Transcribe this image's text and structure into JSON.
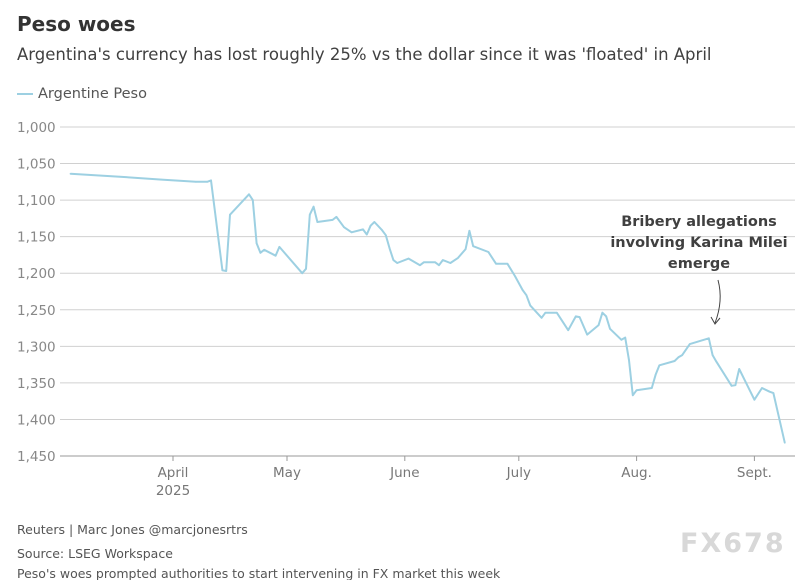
{
  "chart_data": {
    "type": "line",
    "title": "Peso woes",
    "subtitle": "Argentina's currency has lost roughly 25% vs the dollar since it was 'floated' in April",
    "legend": {
      "position": "top-left",
      "entries": [
        "Argentine Peso"
      ]
    },
    "y_axis": {
      "reversed": true,
      "ylim": [
        1000,
        1450
      ],
      "ticks": [
        1000,
        1050,
        1100,
        1150,
        1200,
        1250,
        1300,
        1350,
        1400,
        1450
      ],
      "tick_labels": [
        "1,000",
        "1,050",
        "1,100",
        "1,150",
        "1,200",
        "1,250",
        "1,300",
        "1,350",
        "1,400",
        "1,450"
      ]
    },
    "x_axis": {
      "tick_dates": [
        "2025-04-01",
        "2025-05-01",
        "2025-06-01",
        "2025-07-01",
        "2025-08-01",
        "2025-09-01"
      ],
      "tick_labels": [
        "April",
        "May",
        "June",
        "July",
        "Aug.",
        "Sept."
      ],
      "year_label": "2025"
    },
    "grid": "horizontal",
    "series": [
      {
        "name": "Argentine Peso",
        "color": "#9dd0e2",
        "points": [
          [
            "2025-03-05",
            1064
          ],
          [
            "2025-03-18",
            1068
          ],
          [
            "2025-03-29",
            1072
          ],
          [
            "2025-04-07",
            1075
          ],
          [
            "2025-04-10",
            1075
          ],
          [
            "2025-04-11",
            1073
          ],
          [
            "2025-04-14",
            1196
          ],
          [
            "2025-04-15",
            1197
          ],
          [
            "2025-04-16",
            1120
          ],
          [
            "2025-04-21",
            1092
          ],
          [
            "2025-04-22",
            1100
          ],
          [
            "2025-04-23",
            1159
          ],
          [
            "2025-04-24",
            1172
          ],
          [
            "2025-04-25",
            1168
          ],
          [
            "2025-04-28",
            1176
          ],
          [
            "2025-04-29",
            1164
          ],
          [
            "2025-05-05",
            1200
          ],
          [
            "2025-05-06",
            1194
          ],
          [
            "2025-05-07",
            1120
          ],
          [
            "2025-05-08",
            1109
          ],
          [
            "2025-05-09",
            1130
          ],
          [
            "2025-05-13",
            1127
          ],
          [
            "2025-05-14",
            1123
          ],
          [
            "2025-05-16",
            1137
          ],
          [
            "2025-05-18",
            1144
          ],
          [
            "2025-05-21",
            1140
          ],
          [
            "2025-05-22",
            1147
          ],
          [
            "2025-05-23",
            1135
          ],
          [
            "2025-05-24",
            1130
          ],
          [
            "2025-05-26",
            1141
          ],
          [
            "2025-05-27",
            1148
          ],
          [
            "2025-05-28",
            1166
          ],
          [
            "2025-05-29",
            1182
          ],
          [
            "2025-05-30",
            1186
          ],
          [
            "2025-06-02",
            1180
          ],
          [
            "2025-06-05",
            1189
          ],
          [
            "2025-06-06",
            1185
          ],
          [
            "2025-06-09",
            1185
          ],
          [
            "2025-06-10",
            1189
          ],
          [
            "2025-06-11",
            1182
          ],
          [
            "2025-06-13",
            1186
          ],
          [
            "2025-06-15",
            1179
          ],
          [
            "2025-06-17",
            1167
          ],
          [
            "2025-06-18",
            1142
          ],
          [
            "2025-06-19",
            1163
          ],
          [
            "2025-06-23",
            1171
          ],
          [
            "2025-06-25",
            1187
          ],
          [
            "2025-06-28",
            1187
          ],
          [
            "2025-06-30",
            1204
          ],
          [
            "2025-07-02",
            1223
          ],
          [
            "2025-07-03",
            1230
          ],
          [
            "2025-07-04",
            1244
          ],
          [
            "2025-07-07",
            1261
          ],
          [
            "2025-07-08",
            1254
          ],
          [
            "2025-07-11",
            1254
          ],
          [
            "2025-07-14",
            1278
          ],
          [
            "2025-07-16",
            1259
          ],
          [
            "2025-07-17",
            1260
          ],
          [
            "2025-07-19",
            1284
          ],
          [
            "2025-07-22",
            1271
          ],
          [
            "2025-07-23",
            1254
          ],
          [
            "2025-07-24",
            1259
          ],
          [
            "2025-07-25",
            1276
          ],
          [
            "2025-07-28",
            1291
          ],
          [
            "2025-07-29",
            1288
          ],
          [
            "2025-07-30",
            1319
          ],
          [
            "2025-07-31",
            1367
          ],
          [
            "2025-08-01",
            1360
          ],
          [
            "2025-08-05",
            1357
          ],
          [
            "2025-08-06",
            1339
          ],
          [
            "2025-08-07",
            1326
          ],
          [
            "2025-08-11",
            1320
          ],
          [
            "2025-08-12",
            1315
          ],
          [
            "2025-08-13",
            1312
          ],
          [
            "2025-08-15",
            1297
          ],
          [
            "2025-08-20",
            1289
          ],
          [
            "2025-08-21",
            1312
          ],
          [
            "2025-08-22",
            1321
          ],
          [
            "2025-08-26",
            1354
          ],
          [
            "2025-08-27",
            1353
          ],
          [
            "2025-08-28",
            1331
          ],
          [
            "2025-09-01",
            1373
          ],
          [
            "2025-09-03",
            1357
          ],
          [
            "2025-09-05",
            1362
          ],
          [
            "2025-09-06",
            1364
          ],
          [
            "2025-09-09",
            1432
          ]
        ]
      }
    ],
    "annotations": [
      {
        "text_lines": [
          "Bribery allegations",
          "involving Karina Milei",
          "emerge"
        ],
        "date": "2025-08-20",
        "value": 1289
      }
    ]
  },
  "footer": {
    "credit": "Reuters | Marc Jones @marcjonesrtrs",
    "source": "Source: LSEG Workspace",
    "caption": "Peso's woes prompted authorities to start intervening in FX market this week"
  },
  "watermark": "FX678"
}
